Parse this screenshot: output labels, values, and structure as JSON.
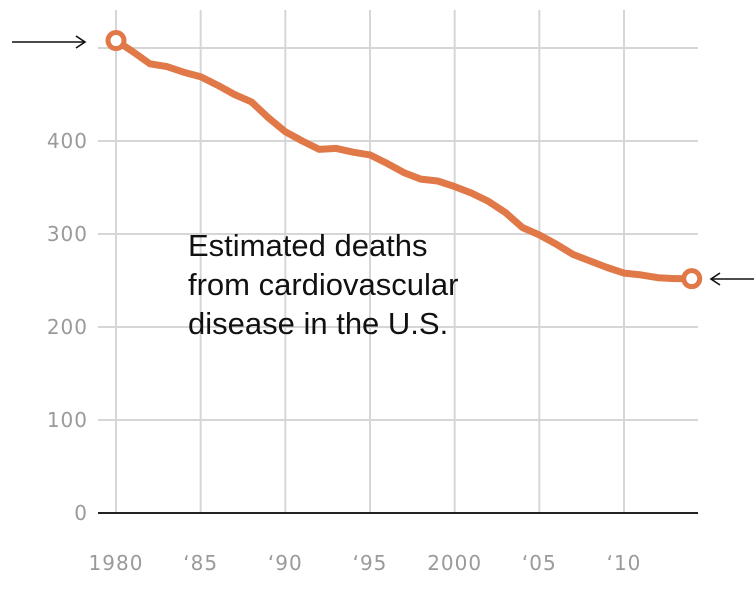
{
  "chart_data": {
    "type": "line",
    "title": "",
    "xlabel": "",
    "ylabel": "",
    "xlim": [
      1980,
      2014
    ],
    "ylim": [
      0,
      510
    ],
    "grid": true,
    "x_ticks": [
      {
        "value": 1980,
        "label": "1980"
      },
      {
        "value": 1985,
        "label": "‘85"
      },
      {
        "value": 1990,
        "label": "‘90"
      },
      {
        "value": 1995,
        "label": "‘95"
      },
      {
        "value": 2000,
        "label": "2000"
      },
      {
        "value": 2005,
        "label": "‘05"
      },
      {
        "value": 2010,
        "label": "‘10"
      }
    ],
    "y_ticks": [
      {
        "value": 0,
        "label": "0"
      },
      {
        "value": 100,
        "label": "100"
      },
      {
        "value": 200,
        "label": "200"
      },
      {
        "value": 300,
        "label": "300"
      },
      {
        "value": 400,
        "label": "400"
      }
    ],
    "series": [
      {
        "color": "#e07848",
        "x": [
          1980,
          1981,
          1982,
          1983,
          1984,
          1985,
          1986,
          1987,
          1988,
          1989,
          1990,
          1991,
          1992,
          1993,
          1994,
          1995,
          1996,
          1997,
          1998,
          1999,
          2000,
          2001,
          2002,
          2003,
          2004,
          2005,
          2006,
          2007,
          2008,
          2009,
          2010,
          2011,
          2012,
          2013,
          2014
        ],
        "y": [
          508,
          496,
          483,
          480,
          474,
          469,
          460,
          450,
          442,
          425,
          410,
          400,
          391,
          392,
          388,
          385,
          376,
          366,
          359,
          357,
          351,
          344,
          335,
          323,
          307,
          299,
          289,
          278,
          271,
          264,
          258,
          256,
          253,
          252,
          252
        ]
      }
    ],
    "annotation": {
      "lines": [
        "Estimated deaths",
        "from cardiovascular",
        "disease in the U.S."
      ]
    },
    "endpoint_markers": [
      "start",
      "end"
    ],
    "arrows": [
      "left-edge-pointing-right",
      "right-edge-pointing-left"
    ]
  }
}
